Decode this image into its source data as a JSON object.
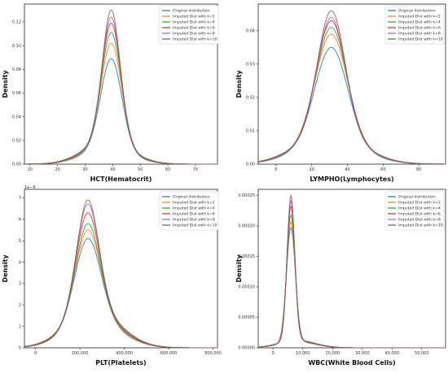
{
  "legend": [
    {
      "name": "Original distribution",
      "color": "#1f77b4"
    },
    {
      "name": "Imputed Dist with k=2",
      "color": "#ff7f0e"
    },
    {
      "name": "Imputed Dist with k=4",
      "color": "#2ca02c"
    },
    {
      "name": "Imputed Dist with k=6",
      "color": "#d62728"
    },
    {
      "name": "Imputed Dist with k=8",
      "color": "#9467bd"
    },
    {
      "name": "Imputed Dist with k=10",
      "color": "#8c564b"
    }
  ],
  "chart_data": [
    {
      "type": "line",
      "xlabel": "HCT(Hematocrit)",
      "ylabel": "Density",
      "xlim": [
        8,
        78
      ],
      "ylim": [
        0,
        0.135
      ],
      "x_ticks": [
        "10",
        "20",
        "30",
        "40",
        "50",
        "60",
        "70"
      ],
      "x_tick_values": [
        10,
        20,
        30,
        40,
        50,
        60,
        70
      ],
      "y_ticks": [
        "0.00",
        "0.02",
        "0.04",
        "0.06",
        "0.08",
        "0.10",
        "0.12"
      ],
      "y_tick_values": [
        0,
        0.02,
        0.04,
        0.06,
        0.08,
        0.1,
        0.12
      ],
      "legend_position": "top-right",
      "curve": {
        "mu": 39.5,
        "sigma": 3.8,
        "tail_weight": 0.15,
        "tail_sigma": 8.5,
        "tail_mu": 38
      },
      "series": [
        {
          "name": "Original distribution",
          "peak": 0.089
        },
        {
          "name": "Imputed Dist with k=2",
          "peak": 0.102
        },
        {
          "name": "Imputed Dist with k=4",
          "peak": 0.111
        },
        {
          "name": "Imputed Dist with k=6",
          "peak": 0.119
        },
        {
          "name": "Imputed Dist with k=8",
          "peak": 0.124
        },
        {
          "name": "Imputed Dist with k=10",
          "peak": 0.13
        }
      ]
    },
    {
      "type": "line",
      "xlabel": "LYMPHO(Lymphocytes)",
      "ylabel": "Density",
      "xlim": [
        -10,
        95
      ],
      "ylim": [
        0,
        0.048
      ],
      "x_ticks": [
        "0",
        "20",
        "40",
        "60",
        "80"
      ],
      "x_tick_values": [
        0,
        20,
        40,
        60,
        80
      ],
      "y_ticks": [
        "0.00",
        "0.01",
        "0.02",
        "0.03",
        "0.04"
      ],
      "y_tick_values": [
        0,
        0.01,
        0.02,
        0.03,
        0.04
      ],
      "legend_position": "top-right",
      "curve": {
        "mu": 31,
        "sigma": 9,
        "tail_weight": 0.2,
        "tail_sigma": 18,
        "tail_mu": 30
      },
      "series": [
        {
          "name": "Original distribution",
          "peak": 0.035
        },
        {
          "name": "Imputed Dist with k=2",
          "peak": 0.039
        },
        {
          "name": "Imputed Dist with k=4",
          "peak": 0.041
        },
        {
          "name": "Imputed Dist with k=6",
          "peak": 0.043
        },
        {
          "name": "Imputed Dist with k=8",
          "peak": 0.044
        },
        {
          "name": "Imputed Dist with k=10",
          "peak": 0.046
        }
      ]
    },
    {
      "type": "line",
      "xlabel": "PLT(Platelets)",
      "ylabel": "Density",
      "xlim": [
        -50000,
        820000
      ],
      "ylim": [
        0,
        7.4e-06
      ],
      "scale_label": "1e−6",
      "x_ticks": [
        "0",
        "200,000",
        "400,000",
        "600,000",
        "800,000"
      ],
      "x_tick_values": [
        0,
        200000,
        400000,
        600000,
        800000
      ],
      "y_ticks": [
        "0",
        "1",
        "2",
        "3",
        "4",
        "5",
        "6",
        "7"
      ],
      "y_tick_values": [
        0,
        1e-06,
        2e-06,
        3e-06,
        4e-06,
        5e-06,
        6e-06,
        7e-06
      ],
      "legend_position": "top-right",
      "curve": {
        "mu": 235000,
        "sigma": 58000,
        "tail_weight": 0.25,
        "tail_sigma": 120000,
        "tail_mu": 260000
      },
      "series": [
        {
          "name": "Original distribution",
          "peak": 5.1e-06
        },
        {
          "name": "Imputed Dist with k=2",
          "peak": 5.5e-06
        },
        {
          "name": "Imputed Dist with k=4",
          "peak": 5.8e-06
        },
        {
          "name": "Imputed Dist with k=6",
          "peak": 6.3e-06
        },
        {
          "name": "Imputed Dist with k=8",
          "peak": 6.7e-06
        },
        {
          "name": "Imputed Dist with k=10",
          "peak": 6.9e-06
        }
      ]
    },
    {
      "type": "line",
      "xlabel": "WBC(White Blood Cells)",
      "ylabel": "Density",
      "xlim": [
        -5000,
        58000
      ],
      "ylim": [
        0,
        0.00026
      ],
      "x_ticks": [
        "0",
        "10,000",
        "20,000",
        "30,000",
        "40,000",
        "50,000"
      ],
      "x_tick_values": [
        0,
        10000,
        20000,
        30000,
        40000,
        50000
      ],
      "y_ticks": [
        "0.00000",
        "0.00005",
        "0.00010",
        "0.00015",
        "0.00020",
        "0.00025"
      ],
      "y_tick_values": [
        0,
        5e-05,
        0.0001,
        0.00015,
        0.0002,
        0.00025
      ],
      "legend_position": "top-right",
      "curve": {
        "mu": 6000,
        "sigma": 1500,
        "tail_weight": 0.05,
        "tail_sigma": 6000,
        "tail_mu": 8000
      },
      "series": [
        {
          "name": "Original distribution",
          "peak": 0.000197
        },
        {
          "name": "Imputed Dist with k=2",
          "peak": 0.000207
        },
        {
          "name": "Imputed Dist with k=4",
          "peak": 0.000218
        },
        {
          "name": "Imputed Dist with k=6",
          "peak": 0.000232
        },
        {
          "name": "Imputed Dist with k=8",
          "peak": 0.000241
        },
        {
          "name": "Imputed Dist with k=10",
          "peak": 0.00025
        }
      ]
    }
  ]
}
